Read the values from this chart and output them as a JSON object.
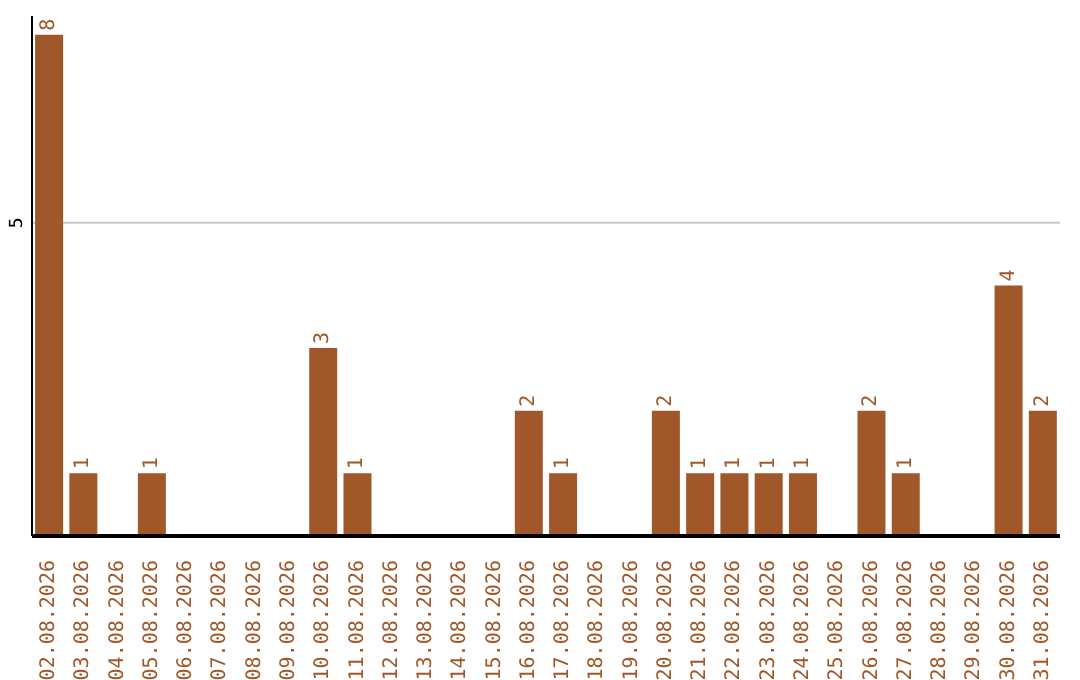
{
  "chart_data": {
    "type": "bar",
    "categories": [
      "02.08.2026",
      "03.08.2026",
      "04.08.2026",
      "05.08.2026",
      "06.08.2026",
      "07.08.2026",
      "08.08.2026",
      "09.08.2026",
      "10.08.2026",
      "11.08.2026",
      "12.08.2026",
      "13.08.2026",
      "14.08.2026",
      "15.08.2026",
      "16.08.2026",
      "17.08.2026",
      "18.08.2026",
      "19.08.2026",
      "20.08.2026",
      "21.08.2026",
      "22.08.2026",
      "23.08.2026",
      "24.08.2026",
      "25.08.2026",
      "26.08.2026",
      "27.08.2026",
      "28.08.2026",
      "29.08.2026",
      "30.08.2026",
      "31.08.2026"
    ],
    "values": [
      8,
      1,
      0,
      1,
      0,
      0,
      0,
      0,
      3,
      1,
      0,
      0,
      0,
      0,
      2,
      1,
      0,
      0,
      2,
      1,
      1,
      1,
      1,
      0,
      2,
      1,
      0,
      0,
      4,
      2
    ],
    "value_labels": [
      "8",
      "1",
      null,
      "1",
      null,
      null,
      null,
      null,
      "3",
      "1",
      null,
      null,
      null,
      null,
      "2",
      "1",
      null,
      null,
      "2",
      "1",
      "1",
      "1",
      "1",
      null,
      "2",
      "1",
      null,
      null,
      "4",
      "2"
    ],
    "color": "#a0582a",
    "ylim": [
      0,
      8.3
    ],
    "yticks": [
      5
    ],
    "grid": "y"
  }
}
